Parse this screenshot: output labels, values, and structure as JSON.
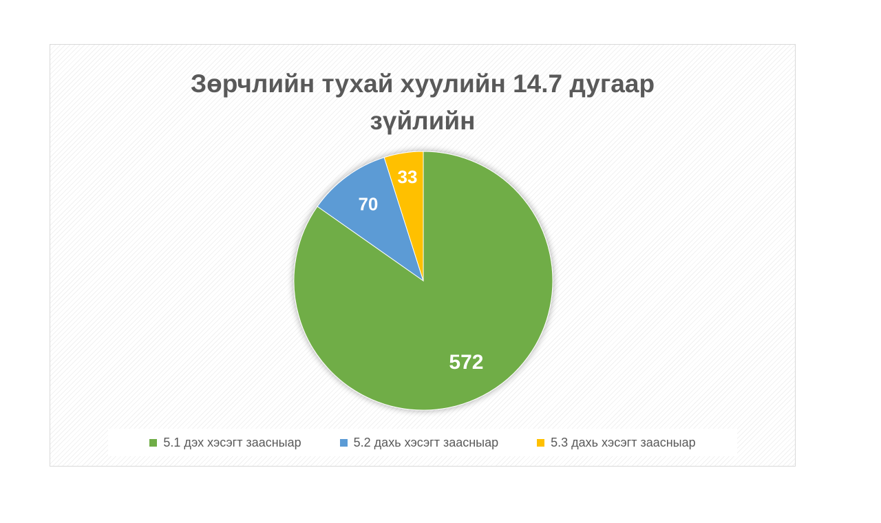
{
  "chart_data": {
    "type": "pie",
    "title_lines": [
      "Зөрчлийн тухай хуулийн 14.7 дугаар",
      "зүйлийн"
    ],
    "slices": [
      {
        "label": "5.1 дэх хэсэгт заасныар",
        "value": 572,
        "color": "#70AD47"
      },
      {
        "label": "5.2 дахь хэсэгт заасныар",
        "value": 70,
        "color": "#5B9BD5"
      },
      {
        "label": "5.3 дахь хэсэгт заасныар",
        "value": 33,
        "color": "#FFC000"
      }
    ],
    "start_angle_deg": 0,
    "direction": "clockwise",
    "legend_position": "bottom",
    "data_labels": true
  }
}
